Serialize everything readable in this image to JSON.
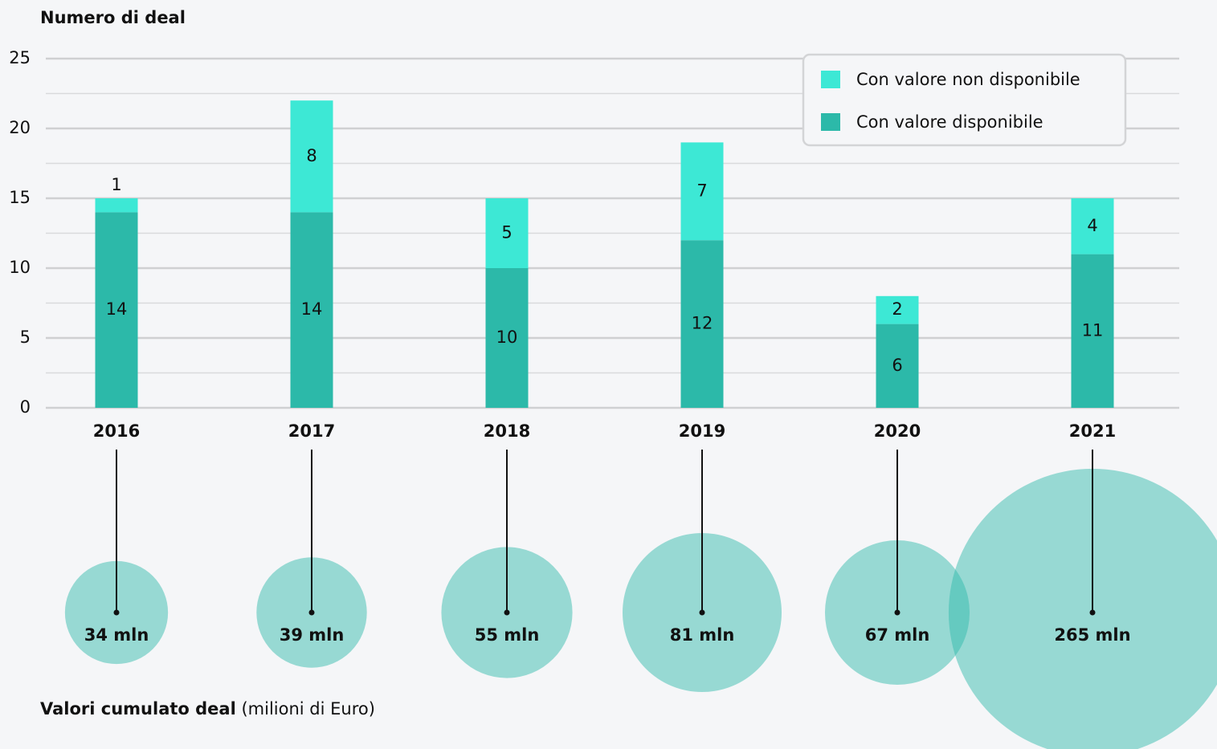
{
  "chart_data": [
    {
      "type": "stacked_bar",
      "y_label": "Numero di deal",
      "categories": [
        "2016",
        "2017",
        "2018",
        "2019",
        "2020",
        "2021"
      ],
      "series": [
        {
          "name": "Con valore disponibile",
          "color": "#2cb9a9",
          "values": [
            14,
            14,
            10,
            12,
            6,
            11
          ]
        },
        {
          "name": "Con valore non disponibile",
          "color": "#3de8d5",
          "values": [
            1,
            8,
            5,
            7,
            2,
            4
          ]
        }
      ],
      "ylim": [
        0,
        25
      ],
      "yticks": [
        0,
        5,
        10,
        15,
        20,
        25
      ],
      "yminor": [
        2.5,
        7.5,
        12.5,
        17.5,
        22.5
      ],
      "grid": true,
      "legend": "top-right"
    },
    {
      "type": "bubble",
      "title": "Valori cumulato deal",
      "subtitle": "(milioni di Euro)",
      "color": "#2cb9a9",
      "values": [
        34,
        39,
        55,
        81,
        67,
        265
      ],
      "value_labels": [
        "34 mln",
        "39 mln",
        "55 mln",
        "81 mln",
        "67 mln",
        "265 mln"
      ]
    }
  ]
}
